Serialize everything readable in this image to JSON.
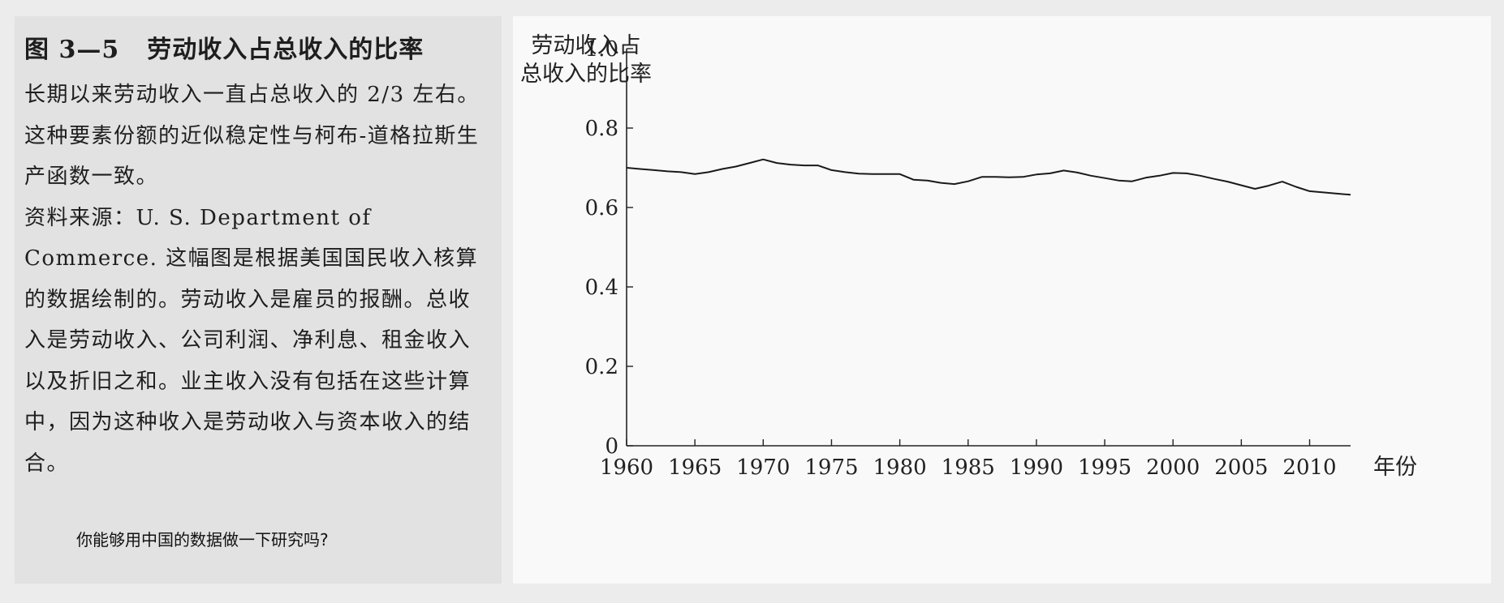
{
  "figure": {
    "number": "图 3—5",
    "title": "劳动收入占总收入的比率",
    "caption_paragraphs": [
      "长期以来劳动收入一直占总收入的 2/3 左右。这种要素份额的近似稳定性与柯布-道格拉斯生产函数一致。",
      "资料来源：U. S. Department of Commerce. 这幅图是根据美国国民收入核算的数据绘制的。劳动收入是雇员的报酬。总收入是劳动收入、公司利润、净利息、租金收入以及折旧之和。业主收入没有包括在这些计算中，因为这种收入是劳动收入与资本收入的结合。"
    ]
  },
  "note": "你能够用中国的数据做一下研究吗?",
  "chart_data": {
    "type": "line",
    "ylabel_lines": [
      "劳动收入占",
      "总收入的比率"
    ],
    "xlabel": "年份",
    "xlim": [
      1960,
      2013
    ],
    "ylim": [
      0,
      1.0
    ],
    "xticks": [
      1960,
      1965,
      1970,
      1975,
      1980,
      1985,
      1990,
      1995,
      2000,
      2005,
      2010
    ],
    "yticks": [
      0,
      0.2,
      0.4,
      0.6,
      0.8,
      1.0
    ],
    "ytick_labels": [
      "0",
      "0.2",
      "0.4",
      "0.6",
      "0.8",
      "1.0"
    ],
    "grid": false,
    "series": [
      {
        "x": [
          1960,
          1961,
          1962,
          1963,
          1964,
          1965,
          1966,
          1967,
          1968,
          1969,
          1970,
          1971,
          1972,
          1973,
          1974,
          1975,
          1976,
          1977,
          1978,
          1979,
          1980,
          1981,
          1982,
          1983,
          1984,
          1985,
          1986,
          1987,
          1988,
          1989,
          1990,
          1991,
          1992,
          1993,
          1994,
          1995,
          1996,
          1997,
          1998,
          1999,
          2000,
          2001,
          2002,
          2003,
          2004,
          2005,
          2006,
          2007,
          2008,
          2009,
          2010,
          2011,
          2012,
          2013
        ],
        "values": [
          0.7,
          0.697,
          0.694,
          0.691,
          0.689,
          0.684,
          0.689,
          0.697,
          0.703,
          0.712,
          0.721,
          0.712,
          0.708,
          0.706,
          0.706,
          0.694,
          0.689,
          0.685,
          0.684,
          0.684,
          0.684,
          0.67,
          0.668,
          0.662,
          0.659,
          0.666,
          0.677,
          0.677,
          0.676,
          0.677,
          0.683,
          0.686,
          0.693,
          0.688,
          0.68,
          0.674,
          0.668,
          0.666,
          0.675,
          0.68,
          0.687,
          0.686,
          0.68,
          0.672,
          0.665,
          0.656,
          0.647,
          0.655,
          0.665,
          0.652,
          0.641,
          0.638,
          0.635,
          0.632
        ]
      }
    ]
  }
}
